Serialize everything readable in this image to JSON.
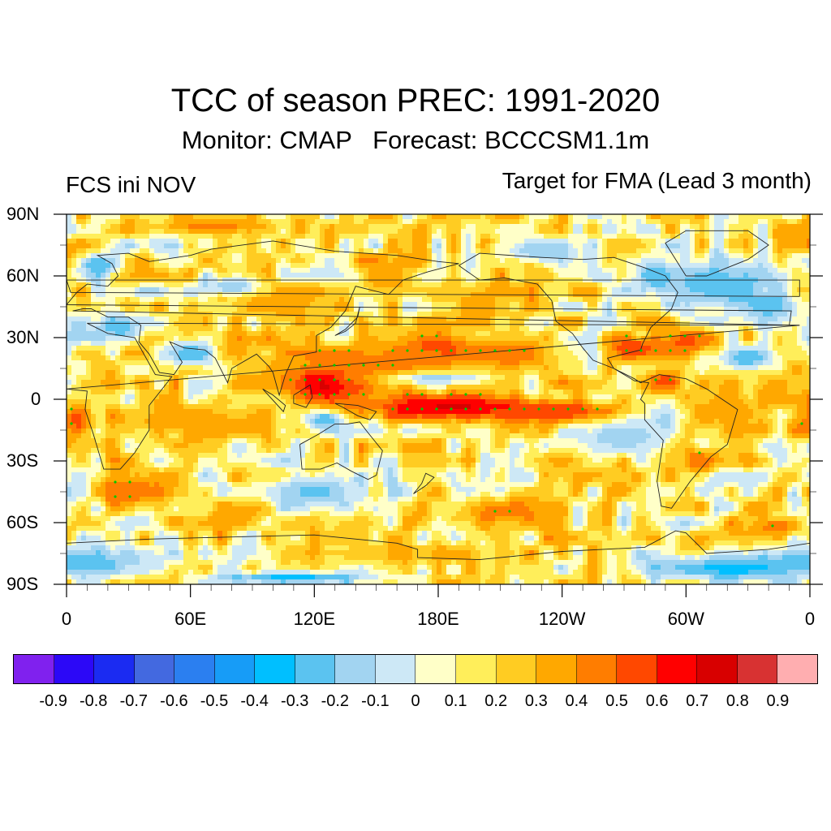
{
  "title": "TCC of season PREC: 1991-2020",
  "subtitle": "Monitor: CMAP   Forecast: BCCCSM1.1m",
  "left_string": "FCS ini NOV",
  "right_string": "Target for FMA (Lead 3 month)",
  "map": {
    "projection": "cylindrical-equidistant",
    "lon_range": [
      0,
      360
    ],
    "lat_range": [
      -90,
      90
    ],
    "y_ticks": [
      {
        "lat": 90,
        "label": "90N"
      },
      {
        "lat": 60,
        "label": "60N"
      },
      {
        "lat": 30,
        "label": "30N"
      },
      {
        "lat": 0,
        "label": "0"
      },
      {
        "lat": -30,
        "label": "30S"
      },
      {
        "lat": -60,
        "label": "60S"
      },
      {
        "lat": -90,
        "label": "90S"
      }
    ],
    "x_ticks": [
      {
        "lon": 0,
        "label": "0"
      },
      {
        "lon": 60,
        "label": "60E"
      },
      {
        "lon": 120,
        "label": "120E"
      },
      {
        "lon": 180,
        "label": "180E"
      },
      {
        "lon": 240,
        "label": "120W"
      },
      {
        "lon": 300,
        "label": "60W"
      },
      {
        "lon": 360,
        "label": "0"
      }
    ],
    "minor_lat_step": 15,
    "minor_lon_step": 10,
    "stipple_colors": {
      "positive_significant": "#00c800",
      "negative_significant": "#a020f0"
    },
    "background_value": 0.15,
    "features": [
      {
        "lon": 125,
        "lat": 8,
        "rlon": 22,
        "rlat": 12,
        "value": 0.75
      },
      {
        "lon": 190,
        "lat": -4,
        "rlon": 45,
        "rlat": 6,
        "value": 0.75
      },
      {
        "lon": 235,
        "lat": -6,
        "rlon": 40,
        "rlat": 5,
        "value": 0.6
      },
      {
        "lon": 180,
        "lat": 25,
        "rlon": 18,
        "rlat": 8,
        "value": 0.65
      },
      {
        "lon": 160,
        "lat": 18,
        "rlon": 35,
        "rlat": 10,
        "value": 0.45
      },
      {
        "lon": 215,
        "lat": 22,
        "rlon": 25,
        "rlat": 10,
        "value": 0.45
      },
      {
        "lon": 275,
        "lat": 25,
        "rlon": 12,
        "rlat": 6,
        "value": 0.6
      },
      {
        "lon": 300,
        "lat": 28,
        "rlon": 14,
        "rlat": 7,
        "value": 0.55
      },
      {
        "lon": 290,
        "lat": 8,
        "rlon": 10,
        "rlat": 8,
        "value": 0.6
      },
      {
        "lon": 320,
        "lat": -5,
        "rlon": 25,
        "rlat": 12,
        "value": 0.35
      },
      {
        "lon": 60,
        "lat": -10,
        "rlon": 40,
        "rlat": 8,
        "value": 0.4
      },
      {
        "lon": 5,
        "lat": -10,
        "rlon": 8,
        "rlat": 10,
        "value": 0.55
      },
      {
        "lon": 30,
        "lat": -45,
        "rlon": 14,
        "rlat": 7,
        "value": 0.5
      },
      {
        "lon": 100,
        "lat": 48,
        "rlon": 25,
        "rlat": 8,
        "value": 0.4
      },
      {
        "lon": 70,
        "lat": 84,
        "rlon": 30,
        "rlat": 4,
        "value": 0.45
      },
      {
        "lon": 155,
        "lat": 60,
        "rlon": 15,
        "rlat": 8,
        "value": 0.4
      },
      {
        "lon": 200,
        "lat": 45,
        "rlon": 20,
        "rlat": 8,
        "value": 0.35
      },
      {
        "lon": 210,
        "lat": -55,
        "rlon": 25,
        "rlat": 8,
        "value": 0.45
      },
      {
        "lon": 155,
        "lat": -75,
        "rlon": 50,
        "rlat": 5,
        "value": 0.3
      },
      {
        "lon": 345,
        "lat": -62,
        "rlon": 12,
        "rlat": 5,
        "value": 0.5
      },
      {
        "lon": 305,
        "lat": -30,
        "rlon": 10,
        "rlat": 6,
        "value": 0.5
      },
      {
        "lon": 240,
        "lat": -30,
        "rlon": 15,
        "rlat": 6,
        "value": 0.35
      },
      {
        "lon": 5,
        "lat": -78,
        "rlon": 40,
        "rlat": 8,
        "value": -0.25
      },
      {
        "lon": 320,
        "lat": -82,
        "rlon": 40,
        "rlat": 6,
        "value": -0.35
      },
      {
        "lon": 110,
        "lat": -87,
        "rlon": 40,
        "rlat": 3,
        "value": -0.35
      },
      {
        "lon": 315,
        "lat": 55,
        "rlon": 30,
        "rlat": 12,
        "value": -0.3
      },
      {
        "lon": 340,
        "lat": 45,
        "rlon": 15,
        "rlat": 7,
        "value": -0.3
      },
      {
        "lon": 25,
        "lat": 35,
        "rlon": 12,
        "rlat": 7,
        "value": -0.3
      },
      {
        "lon": 60,
        "lat": 22,
        "rlon": 12,
        "rlat": 6,
        "value": -0.3
      },
      {
        "lon": 125,
        "lat": -10,
        "rlon": 10,
        "rlat": 5,
        "value": -0.3
      },
      {
        "lon": 180,
        "lat": 10,
        "rlon": 25,
        "rlat": 3,
        "value": -0.15
      },
      {
        "lon": 270,
        "lat": -18,
        "rlon": 20,
        "rlat": 8,
        "value": -0.2
      },
      {
        "lon": 290,
        "lat": -10,
        "rlon": 8,
        "rlat": 10,
        "value": -0.15
      },
      {
        "lon": 120,
        "lat": -45,
        "rlon": 25,
        "rlat": 8,
        "value": -0.25
      },
      {
        "lon": 285,
        "lat": 60,
        "rlon": 12,
        "rlat": 8,
        "value": -0.3
      },
      {
        "lon": 80,
        "lat": 55,
        "rlon": 15,
        "rlat": 5,
        "value": -0.2
      },
      {
        "lon": 15,
        "lat": 65,
        "rlon": 10,
        "rlat": 6,
        "value": -0.3
      },
      {
        "lon": 230,
        "lat": 72,
        "rlon": 20,
        "rlat": 6,
        "value": -0.2
      },
      {
        "lon": 330,
        "lat": 20,
        "rlon": 14,
        "rlat": 6,
        "value": -0.3
      }
    ]
  },
  "colorbar": {
    "labels": [
      "-0.9",
      "-0.8",
      "-0.7",
      "-0.6",
      "-0.5",
      "-0.4",
      "-0.3",
      "-0.2",
      "-0.1",
      "0",
      "0.1",
      "0.2",
      "0.3",
      "0.4",
      "0.5",
      "0.6",
      "0.7",
      "0.8",
      "0.9"
    ],
    "levels": [
      -0.9,
      -0.8,
      -0.7,
      -0.6,
      -0.5,
      -0.4,
      -0.3,
      -0.2,
      -0.1,
      0,
      0.1,
      0.2,
      0.3,
      0.4,
      0.5,
      0.6,
      0.7,
      0.8,
      0.9
    ],
    "colors": [
      "#8021ee",
      "#2c08f7",
      "#1b2bf2",
      "#4369e0",
      "#2b7ff0",
      "#179cf7",
      "#00bfff",
      "#5bc3f0",
      "#a2d4f1",
      "#cde8f6",
      "#ffffc8",
      "#ffee5a",
      "#ffcc22",
      "#ffa800",
      "#ff7d00",
      "#ff4800",
      "#ff0000",
      "#d80000",
      "#d83232",
      "#ffaeb0"
    ]
  }
}
